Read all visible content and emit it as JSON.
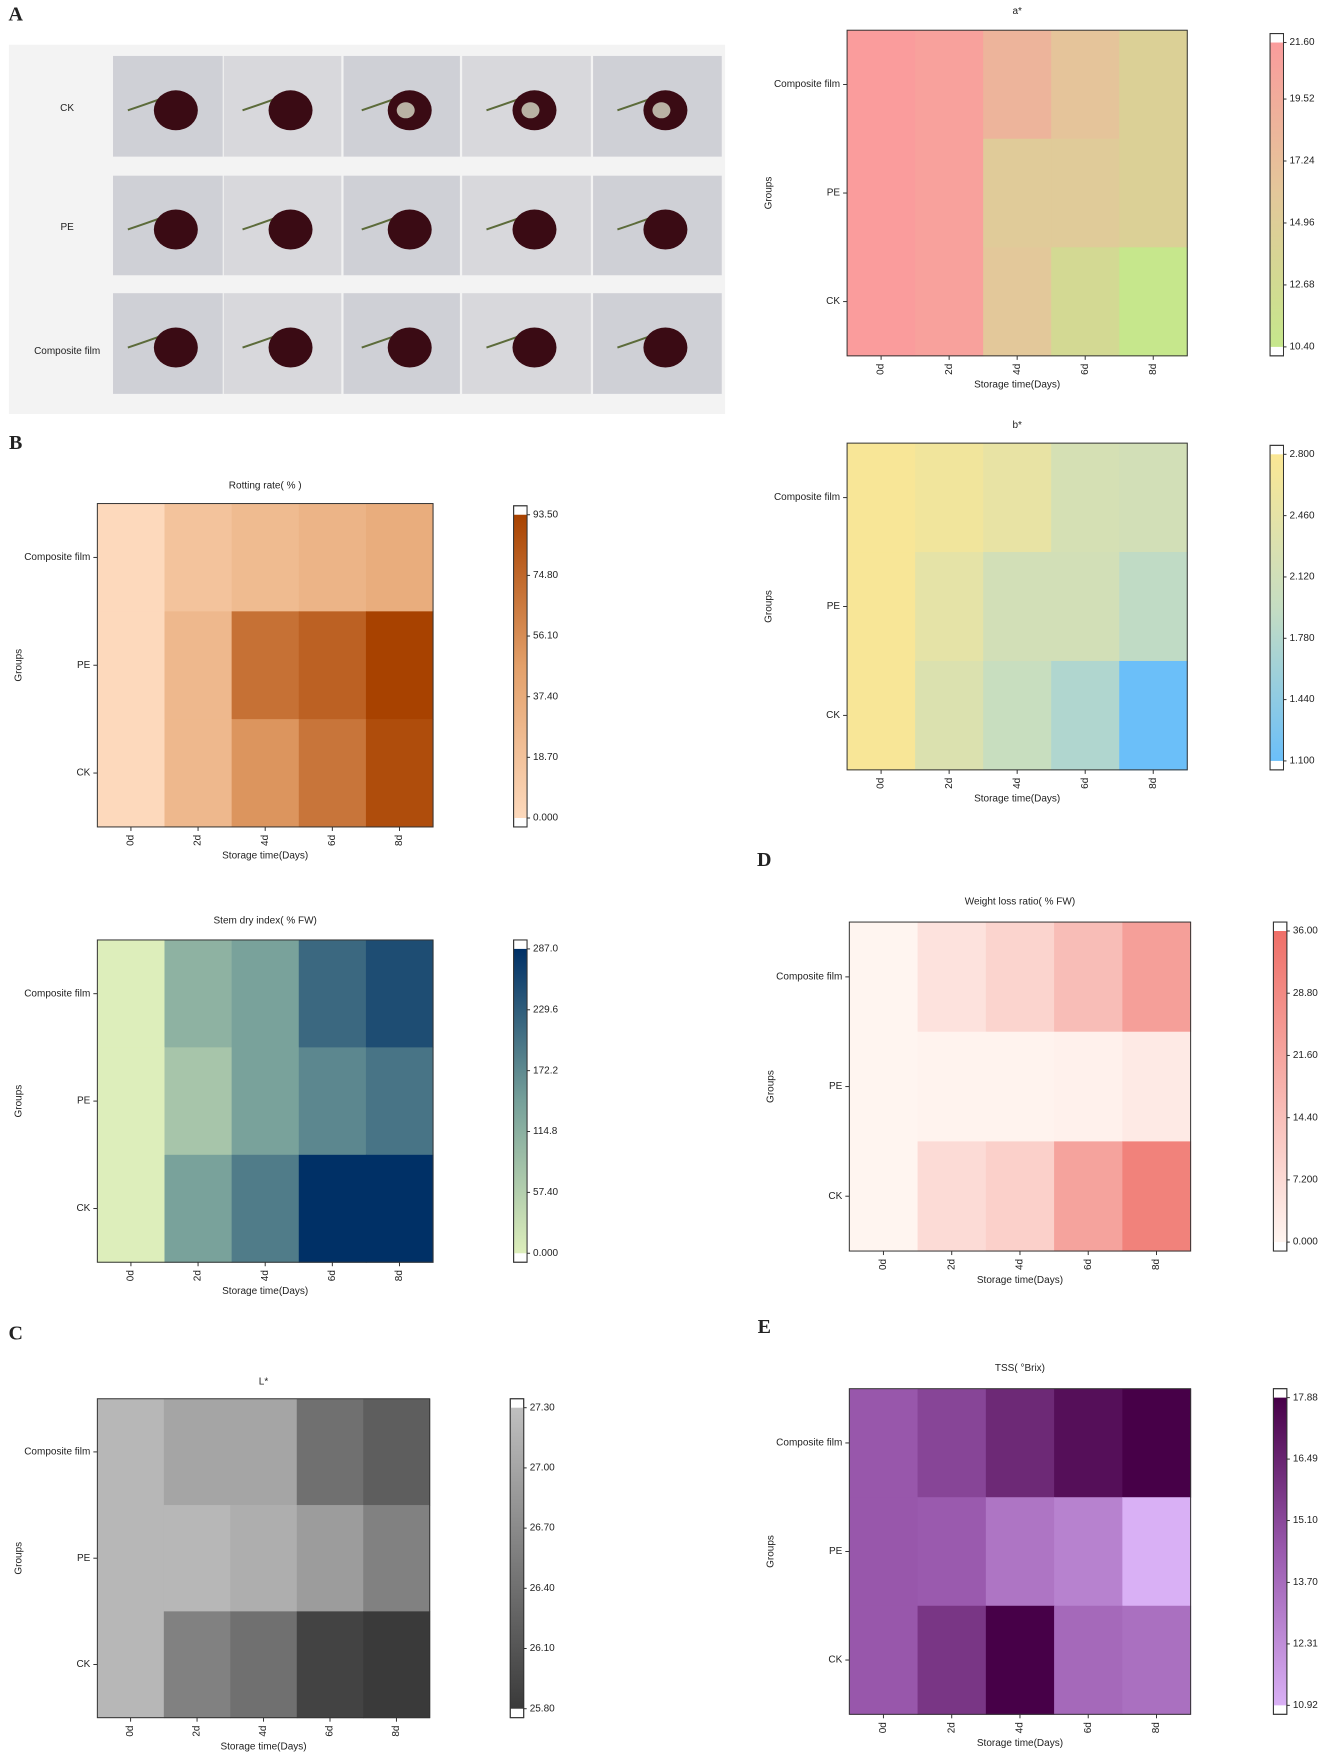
{
  "panel_labels": [
    "A",
    "B",
    "C",
    "D",
    "E"
  ],
  "photos": {
    "row_labels": [
      "CK",
      "PE",
      "Composite film"
    ]
  },
  "chart_data": [
    {
      "type": "heatmap",
      "title": "a*",
      "x_categories": [
        "0d",
        "2d",
        "4d",
        "6d",
        "8d"
      ],
      "y_categories": [
        "Composite film",
        "PE",
        "CK"
      ],
      "xlabel": "Storage time(Days)",
      "ylabel": "Groups",
      "values": [
        [
          21.6,
          21.0,
          18.5,
          16.5,
          14.5
        ],
        [
          21.6,
          21.0,
          15.5,
          15.5,
          14.5
        ],
        [
          21.6,
          21.0,
          16.0,
          13.0,
          10.4
        ]
      ],
      "clim": [
        10.4,
        21.6
      ],
      "colorbar_ticks": [
        {
          "value": 21.6,
          "label": "21.60"
        },
        19.52,
        17.24,
        14.96,
        12.68,
        {
          "value": 10.4,
          "label": "10.40"
        }
      ],
      "colors": [
        "#c6e78c",
        "#e3c89a",
        "#fa9c9c"
      ]
    },
    {
      "type": "heatmap",
      "title": "b*",
      "x_categories": [
        "0d",
        "2d",
        "4d",
        "6d",
        "8d"
      ],
      "y_categories": [
        "Composite film",
        "PE",
        "CK"
      ],
      "xlabel": "Storage time(Days)",
      "ylabel": "Groups",
      "values": [
        [
          2.75,
          2.65,
          2.5,
          2.2,
          2.15
        ],
        [
          2.75,
          2.45,
          2.15,
          2.15,
          1.9
        ],
        [
          2.75,
          2.3,
          2.0,
          1.75,
          1.1
        ]
      ],
      "clim": [
        1.1,
        2.8
      ],
      "colorbar_ticks": [
        {
          "value": 2.8,
          "label": "2.800"
        },
        {
          "value": 2.46,
          "label": "2.460"
        },
        {
          "value": 2.12,
          "label": "2.120"
        },
        {
          "value": 1.78,
          "label": "1.780"
        },
        {
          "value": 1.44,
          "label": "1.440"
        },
        {
          "value": 1.1,
          "label": "1.100"
        }
      ],
      "colors": [
        "#6bbff9",
        "#c5ddc2",
        "#fbe794"
      ]
    },
    {
      "type": "heatmap",
      "title": "Rotting rate( % )",
      "x_categories": [
        "0d",
        "2d",
        "4d",
        "6d",
        "8d"
      ],
      "y_categories": [
        "Composite film",
        "PE",
        "CK"
      ],
      "xlabel": "Storage time(Days)",
      "ylabel": "Groups",
      "values": [
        [
          0,
          18,
          25,
          30,
          36
        ],
        [
          0,
          27,
          70,
          78,
          93.5
        ],
        [
          0,
          27,
          52,
          68,
          88
        ]
      ],
      "clim": [
        0,
        93.5
      ],
      "colorbar_ticks": [
        {
          "value": 93.5,
          "label": "93.50"
        },
        {
          "value": 74.8,
          "label": "74.80"
        },
        {
          "value": 56.1,
          "label": "56.10"
        },
        {
          "value": 37.4,
          "label": "37.40"
        },
        {
          "value": 18.7,
          "label": "18.70"
        },
        {
          "value": 0,
          "label": "0.000"
        }
      ],
      "colors": [
        "#fdd9bc",
        "#e3a06a",
        "#a84200"
      ]
    },
    {
      "type": "heatmap",
      "title": "Stem dry index( % FW)",
      "x_categories": [
        "0d",
        "2d",
        "4d",
        "6d",
        "8d"
      ],
      "y_categories": [
        "Composite film",
        "PE",
        "CK"
      ],
      "xlabel": "Storage time(Days)",
      "ylabel": "Groups",
      "values": [
        [
          0,
          110,
          140,
          215,
          250
        ],
        [
          0,
          75,
          140,
          175,
          200
        ],
        [
          0,
          140,
          190,
          287,
          287
        ]
      ],
      "clim": [
        0,
        287
      ],
      "colorbar_ticks": [
        {
          "value": 287,
          "label": "287.0"
        },
        229.6,
        172.2,
        114.8,
        {
          "value": 57.4,
          "label": "57.40"
        },
        {
          "value": 0,
          "label": "0.000"
        }
      ],
      "colors": [
        "#ddeebb",
        "#76a09a",
        "#003066"
      ]
    },
    {
      "type": "heatmap",
      "title": "L*",
      "x_categories": [
        "0d",
        "2d",
        "4d",
        "6d",
        "8d"
      ],
      "y_categories": [
        "Composite film",
        "PE",
        "CK"
      ],
      "xlabel": "Storage time(Days)",
      "ylabel": "Groups",
      "values": [
        [
          27.2,
          27.0,
          27.0,
          26.4,
          26.2
        ],
        [
          27.2,
          27.2,
          27.1,
          26.9,
          26.6
        ],
        [
          27.2,
          26.6,
          26.4,
          25.9,
          25.8
        ]
      ],
      "clim": [
        25.8,
        27.3
      ],
      "colorbar_ticks": [
        {
          "value": 27.3,
          "label": "27.30"
        },
        {
          "value": 27.0,
          "label": "27.00"
        },
        {
          "value": 26.7,
          "label": "26.70"
        },
        {
          "value": 26.4,
          "label": "26.40"
        },
        {
          "value": 26.1,
          "label": "26.10"
        },
        {
          "value": 25.8,
          "label": "25.80"
        }
      ],
      "colors": [
        "#3a3a3a",
        "#c0c0c0"
      ]
    },
    {
      "type": "heatmap",
      "title": "Weight loss ratio( % FW)",
      "x_categories": [
        "0d",
        "2d",
        "4d",
        "6d",
        "8d"
      ],
      "y_categories": [
        "Composite film",
        "PE",
        "CK"
      ],
      "xlabel": "Storage time(Days)",
      "ylabel": "Groups",
      "values": [
        [
          0,
          5,
          9,
          15,
          23
        ],
        [
          0,
          0.5,
          0.5,
          1,
          3
        ],
        [
          0,
          7,
          10,
          22,
          31
        ]
      ],
      "clim": [
        0,
        36
      ],
      "colorbar_ticks": [
        {
          "value": 36,
          "label": "36.00"
        },
        {
          "value": 28.8,
          "label": "28.80"
        },
        {
          "value": 21.6,
          "label": "21.60"
        },
        {
          "value": 14.4,
          "label": "14.40"
        },
        {
          "value": 7.2,
          "label": "7.200"
        },
        {
          "value": 0,
          "label": "0.000"
        }
      ],
      "colors": [
        "#fff5f0",
        "#ef6f68"
      ]
    },
    {
      "type": "heatmap",
      "title": "TSS( °Brix)",
      "x_categories": [
        "0d",
        "2d",
        "4d",
        "6d",
        "8d"
      ],
      "y_categories": [
        "Composite film",
        "PE",
        "CK"
      ],
      "xlabel": "Storage time(Days)",
      "ylabel": "Groups",
      "values": [
        [
          14.5,
          15.2,
          16.3,
          17.3,
          17.88
        ],
        [
          14.5,
          14.4,
          13.3,
          12.8,
          10.92
        ],
        [
          14.5,
          15.8,
          17.88,
          13.8,
          13.5
        ]
      ],
      "clim": [
        10.92,
        17.88
      ],
      "colorbar_ticks": [
        17.88,
        16.49,
        {
          "value": 15.1,
          "label": "15.10"
        },
        {
          "value": 13.7,
          "label": "13.70"
        },
        12.31,
        10.92
      ],
      "colors": [
        "#d9b0f5",
        "#9a5aae",
        "#470048"
      ]
    }
  ]
}
